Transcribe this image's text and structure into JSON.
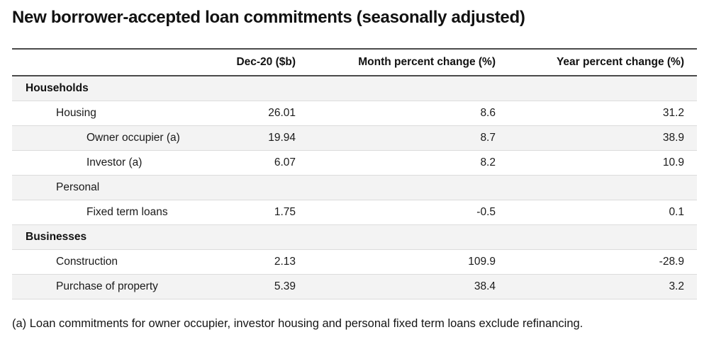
{
  "title": "New borrower-accepted loan commitments (seasonally adjusted)",
  "table": {
    "columns": [
      "",
      "Dec-20 ($b)",
      "Month percent change (%)",
      "Year percent change (%)"
    ],
    "rows": [
      {
        "label": "Households",
        "indent": 0,
        "section": true,
        "values": [
          "",
          "",
          ""
        ]
      },
      {
        "label": "Housing",
        "indent": 1,
        "section": false,
        "values": [
          "26.01",
          "8.6",
          "31.2"
        ]
      },
      {
        "label": "Owner occupier (a)",
        "indent": 2,
        "section": false,
        "values": [
          "19.94",
          "8.7",
          "38.9"
        ]
      },
      {
        "label": "Investor (a)",
        "indent": 2,
        "section": false,
        "values": [
          "6.07",
          "8.2",
          "10.9"
        ]
      },
      {
        "label": "Personal",
        "indent": 1,
        "section": false,
        "values": [
          "",
          "",
          ""
        ]
      },
      {
        "label": "Fixed term loans",
        "indent": 2,
        "section": false,
        "values": [
          "1.75",
          "-0.5",
          "0.1"
        ]
      },
      {
        "label": "Businesses",
        "indent": 0,
        "section": true,
        "values": [
          "",
          "",
          ""
        ]
      },
      {
        "label": "Construction",
        "indent": 1,
        "section": false,
        "values": [
          "2.13",
          "109.9",
          "-28.9"
        ]
      },
      {
        "label": "Purchase of property",
        "indent": 1,
        "section": false,
        "values": [
          "5.39",
          "38.4",
          "3.2"
        ]
      }
    ]
  },
  "footnote": "(a) Loan commitments for owner occupier, investor housing and personal fixed term loans exclude refinancing.",
  "colors": {
    "stripe_row_background": "#f3f3f3",
    "dark_rule": "#4a4a4a",
    "light_rule": "#dcdcdc",
    "text": "#1a1a1a"
  }
}
